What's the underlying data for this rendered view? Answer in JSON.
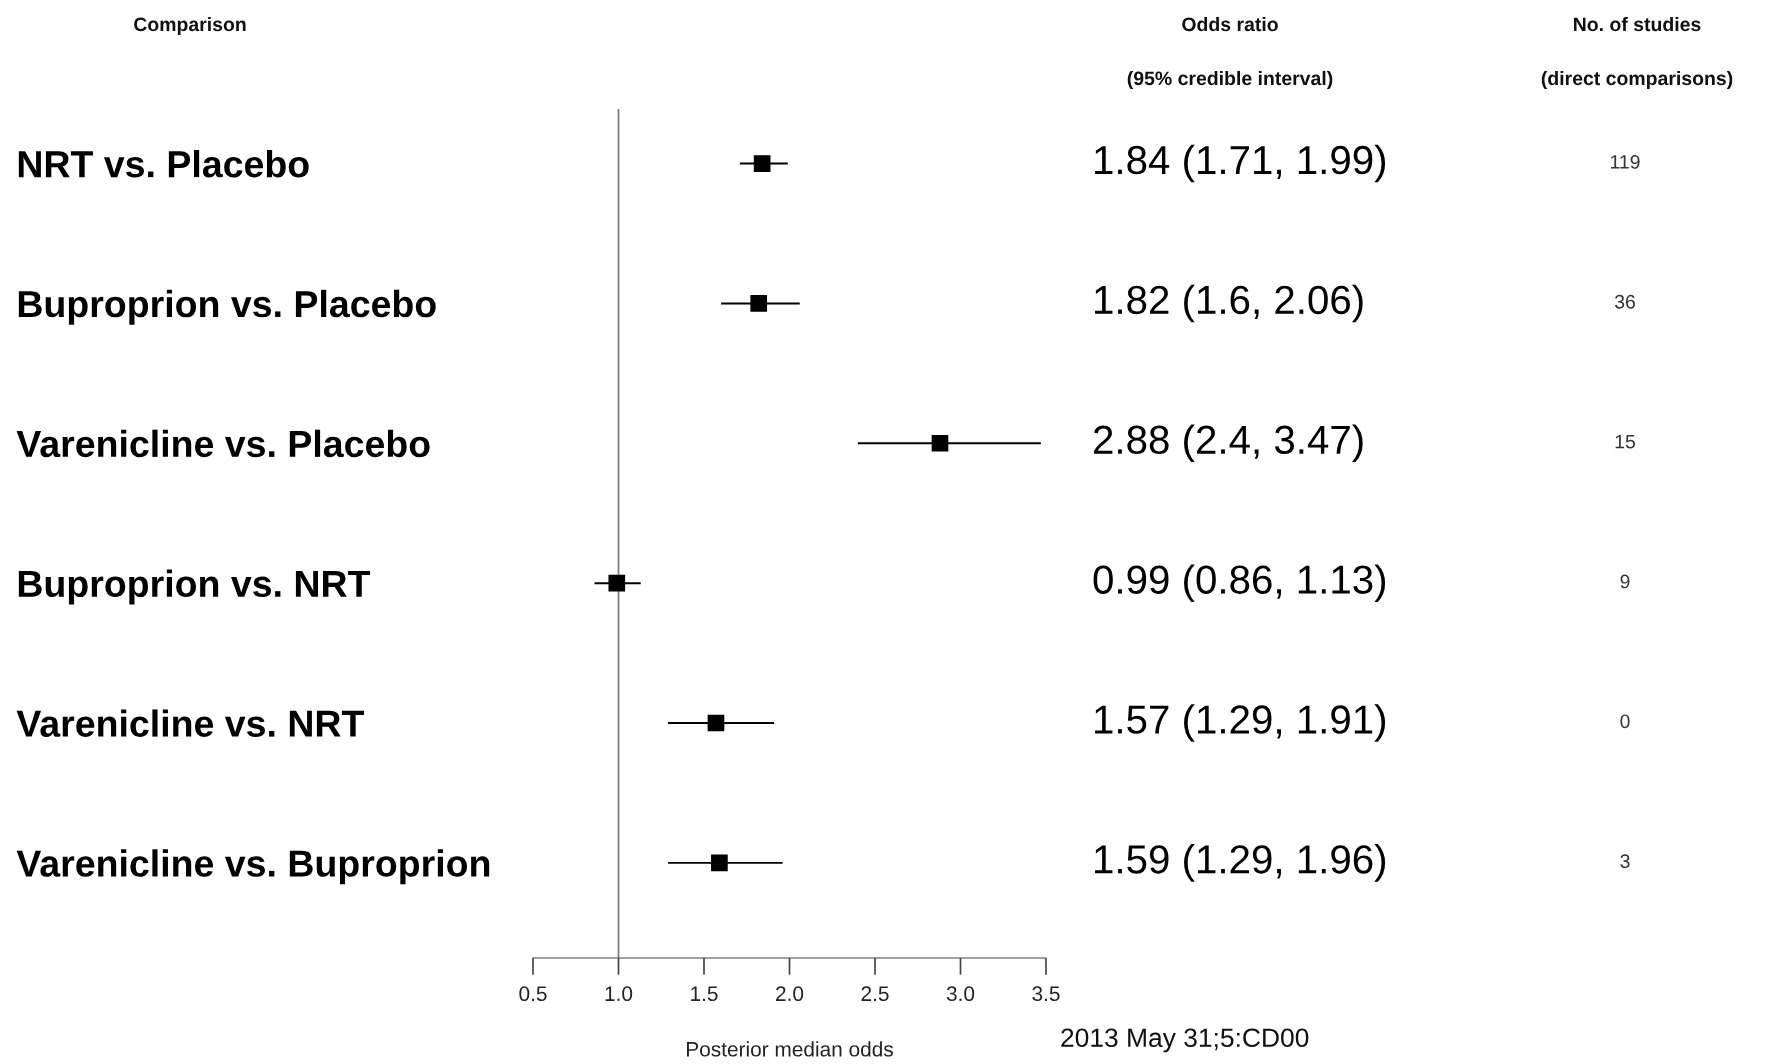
{
  "chart_data": {
    "type": "scatter",
    "orientation": "horizontal",
    "xlabel": "Posterior median odds",
    "categories": [
      "NRT vs. Placebo",
      "Buproprion vs. Placebo",
      "Varenicline vs. Placebo",
      "Buproprion vs. NRT",
      "Varenicline vs. NRT",
      "Varenicline vs. Buproprion"
    ],
    "values": [
      1.84,
      1.82,
      2.88,
      0.99,
      1.57,
      1.59
    ],
    "errors": [
      [
        1.71,
        1.99
      ],
      [
        1.6,
        2.06
      ],
      [
        2.4,
        3.47
      ],
      [
        0.86,
        1.13
      ],
      [
        1.29,
        1.91
      ],
      [
        1.29,
        1.96
      ]
    ],
    "color": "#000000",
    "marker": "square",
    "grid": false,
    "xlim": [
      0.5,
      3.5
    ],
    "xticks": [
      0.5,
      {
        "value": 1,
        "label": "1.0"
      },
      1.5,
      {
        "value": 2,
        "label": "2.0"
      },
      2.5,
      {
        "value": 3,
        "label": "3.0"
      },
      3.5
    ],
    "ref_lines": [
      {
        "axis": "x",
        "value": 1,
        "color": "#808080"
      }
    ],
    "annotations": [
      "Comparison",
      "Odds ratio",
      "(95% credible interval)",
      "No. of studies",
      "(direct comparisons)",
      "1.84 (1.71, 1.99)",
      "1.82 (1.6, 2.06)",
      "2.88 (2.4, 3.47)",
      "0.99 (0.86, 1.13)",
      "1.57 (1.29, 1.91)",
      "1.59 (1.29, 1.96)",
      "119",
      "36",
      "15",
      "9",
      "0",
      "3",
      "2013 May 31;5:CD00"
    ]
  }
}
